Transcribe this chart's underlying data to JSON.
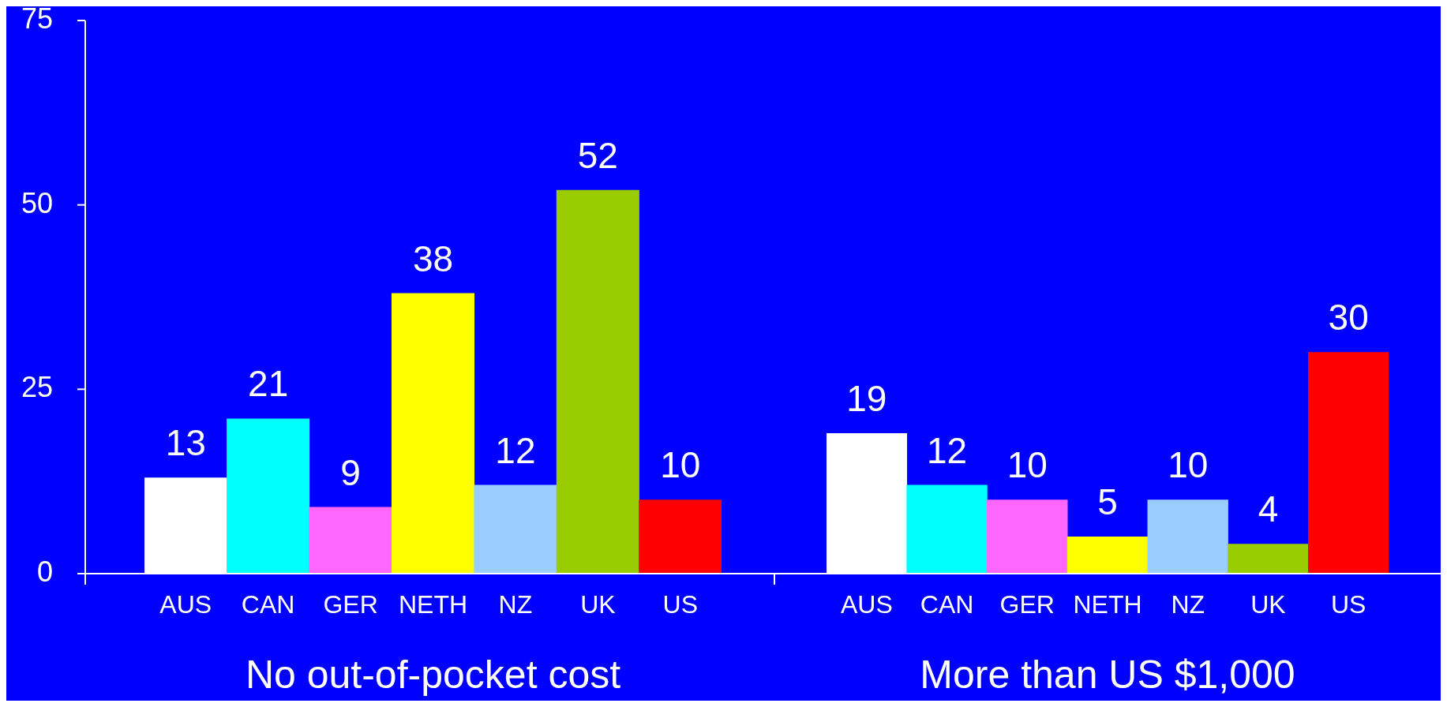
{
  "chart_data": [
    {
      "type": "bar",
      "categories": [
        "AUS",
        "CAN",
        "GER",
        "NETH",
        "NZ",
        "UK",
        "US"
      ],
      "values": [
        13,
        21,
        9,
        38,
        12,
        52,
        10
      ],
      "colors": [
        "#ffffff",
        "#00ffff",
        "#ff66ff",
        "#ffff00",
        "#99ccff",
        "#99cc00",
        "#ff0000"
      ],
      "xlabel": "No out-of-pocket cost",
      "ylim": [
        0,
        75
      ],
      "yticks": [
        0,
        25,
        50,
        75
      ],
      "data_labels": true
    },
    {
      "type": "bar",
      "categories": [
        "AUS",
        "CAN",
        "GER",
        "NETH",
        "NZ",
        "UK",
        "US"
      ],
      "values": [
        19,
        12,
        10,
        5,
        10,
        4,
        30
      ],
      "colors": [
        "#ffffff",
        "#00ffff",
        "#ff66ff",
        "#ffff00",
        "#99ccff",
        "#99cc00",
        "#ff0000"
      ],
      "xlabel": "More than US $1,000",
      "ylim": [
        0,
        75
      ],
      "yticks": [
        0,
        25,
        50,
        75
      ],
      "data_labels": true,
      "tick_labels": "x"
    }
  ]
}
